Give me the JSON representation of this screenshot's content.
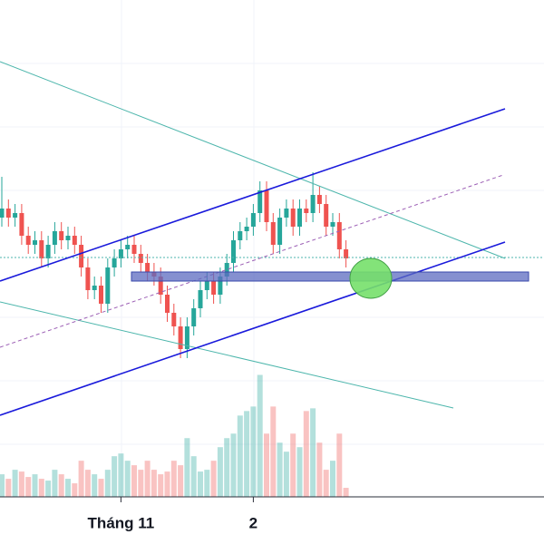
{
  "chart_data": {
    "type": "candlestick",
    "categories": [
      null,
      null,
      null,
      null,
      null,
      null,
      null,
      null,
      null,
      null,
      null,
      null,
      null,
      null,
      null,
      null,
      null,
      null,
      "Tháng 11",
      null,
      null,
      null,
      null,
      null,
      null,
      null,
      null,
      null,
      null,
      null,
      null,
      null,
      null,
      null,
      null,
      null,
      null,
      null,
      "2",
      null,
      null,
      null,
      null,
      null,
      null,
      null,
      null,
      null,
      null,
      null,
      null,
      null,
      null
    ],
    "open": [
      62,
      64,
      62,
      63,
      58,
      56,
      57,
      53,
      56,
      59,
      57,
      58,
      56,
      51,
      46,
      47,
      43,
      51,
      53,
      55,
      56,
      54,
      52,
      50,
      49,
      45,
      41,
      38,
      33,
      38,
      42,
      46,
      48,
      45,
      49,
      52,
      57,
      59,
      60,
      63,
      68,
      61,
      56,
      62,
      64,
      60,
      64,
      63,
      67,
      65,
      60,
      61,
      55
    ],
    "high": [
      71,
      66,
      65,
      65,
      60,
      59,
      59,
      58,
      61,
      61,
      60,
      60,
      58,
      53,
      49,
      49,
      53,
      55,
      57,
      58,
      58,
      56,
      54,
      52,
      51,
      47,
      43,
      40,
      40,
      44,
      48,
      50,
      50,
      51,
      54,
      59,
      61,
      62,
      65,
      70,
      70,
      63,
      64,
      66,
      66,
      66,
      66,
      72,
      69,
      67,
      63,
      63,
      57
    ],
    "low": [
      60,
      60,
      60,
      56,
      54,
      54,
      51,
      51,
      54,
      55,
      55,
      54,
      49,
      44,
      44,
      41,
      41,
      49,
      51,
      53,
      52,
      50,
      48,
      47,
      43,
      39,
      36,
      31,
      31,
      36,
      40,
      44,
      43,
      43,
      47,
      50,
      55,
      57,
      58,
      61,
      59,
      54,
      54,
      60,
      58,
      58,
      61,
      61,
      63,
      58,
      58,
      53,
      51
    ],
    "close": [
      64,
      62,
      63,
      58,
      56,
      57,
      53,
      56,
      59,
      57,
      58,
      56,
      51,
      46,
      47,
      43,
      51,
      53,
      55,
      56,
      54,
      52,
      50,
      49,
      45,
      41,
      38,
      33,
      38,
      42,
      46,
      48,
      45,
      49,
      52,
      57,
      59,
      60,
      63,
      68,
      61,
      56,
      62,
      64,
      60,
      64,
      63,
      67,
      65,
      60,
      61,
      55,
      53
    ],
    "volume": [
      25,
      20,
      30,
      28,
      22,
      25,
      20,
      18,
      30,
      25,
      20,
      15,
      40,
      30,
      25,
      20,
      30,
      45,
      48,
      40,
      35,
      30,
      40,
      30,
      25,
      28,
      40,
      35,
      65,
      45,
      28,
      30,
      40,
      55,
      65,
      70,
      90,
      95,
      100,
      135,
      70,
      100,
      60,
      50,
      70,
      55,
      95,
      98,
      60,
      30,
      40,
      70,
      10
    ],
    "up_color": "#26a69a",
    "down_color": "#ef5350",
    "ylim": [
      0,
      110
    ],
    "y2lim": [
      0,
      550
    ]
  }
}
